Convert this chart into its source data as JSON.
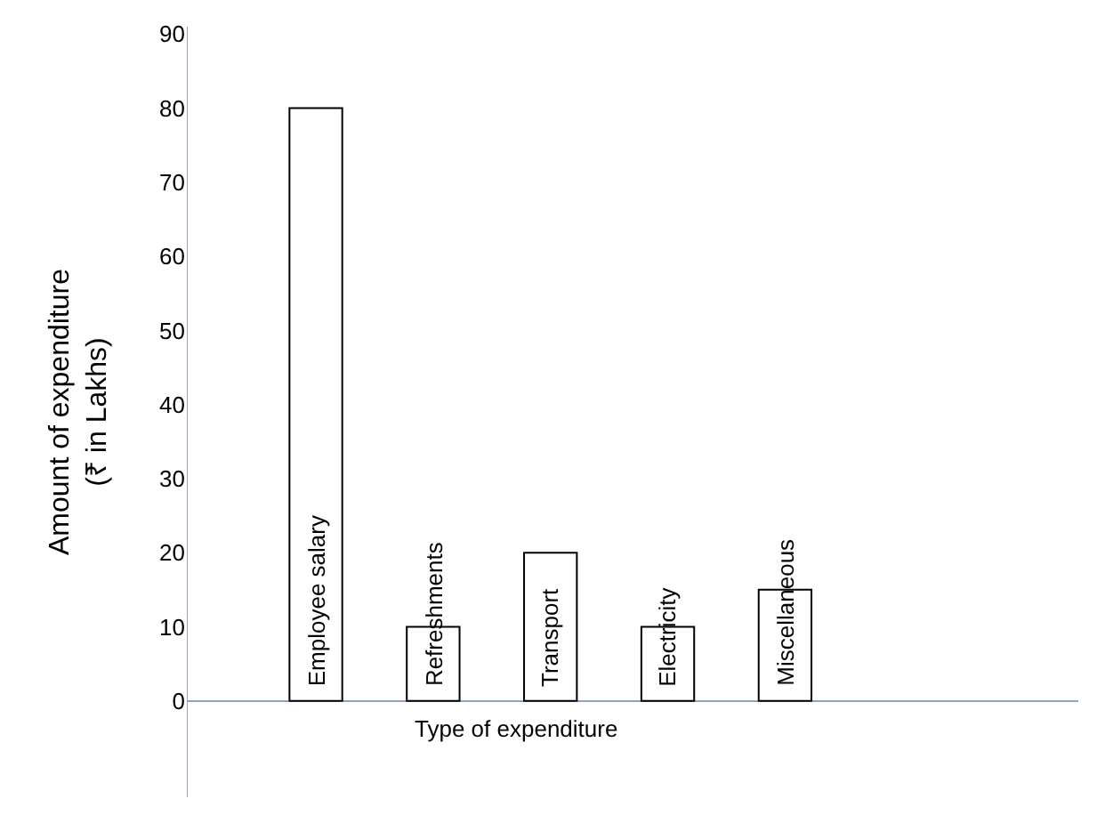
{
  "chart_data": {
    "type": "bar",
    "xlabel": "Type of expenditure",
    "ylabel": "Amount of expenditure\n(₹ in Lakhs)",
    "categories": [
      "Employee salary",
      "Refreshments",
      "Transport",
      "Electricity",
      "Miscellaneous"
    ],
    "values": [
      80,
      10,
      20,
      10,
      15
    ],
    "color": "#ffffff",
    "ylim": [
      -13,
      91
    ],
    "yticks": [
      0,
      10,
      20,
      30,
      40,
      50,
      60,
      70,
      80,
      90
    ],
    "grid": false,
    "tick_labels": "y",
    "legend": false
  }
}
